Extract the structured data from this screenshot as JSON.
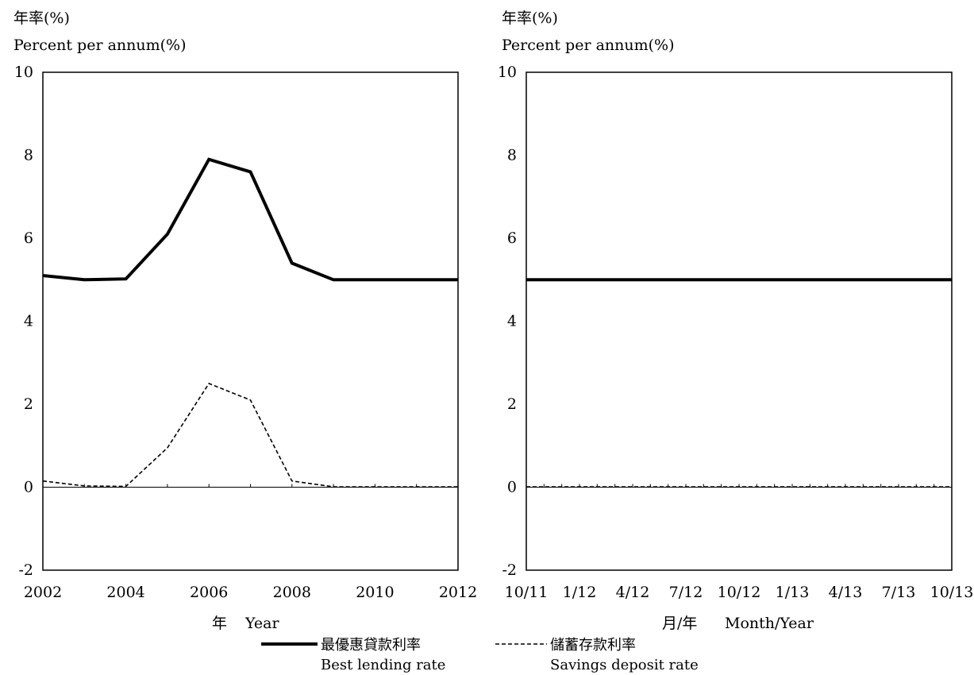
{
  "chart_data": [
    {
      "type": "line",
      "ylabel_zh": "年率(%)",
      "ylabel_en": "Percent per annum(%)",
      "xlabel_zh": "年",
      "xlabel_en": "Year",
      "ylim": [
        -2,
        10
      ],
      "yticks": [
        "10",
        "8",
        "6",
        "4",
        "2",
        "0",
        "-2"
      ],
      "xlim": [
        2002,
        2012
      ],
      "xticks": [
        "2002",
        "2004",
        "2006",
        "2008",
        "2010",
        "2012"
      ],
      "x": [
        2002,
        2003,
        2004,
        2005,
        2006,
        2007,
        2008,
        2009,
        2010,
        2011,
        2012
      ],
      "series": [
        {
          "name": "最優惠貸款利率",
          "style": "solid-thick",
          "color": "#000000",
          "values": [
            5.1,
            5.0,
            5.02,
            6.1,
            7.9,
            7.6,
            5.4,
            5.0,
            5.0,
            5.0,
            5.0
          ]
        },
        {
          "name": "儲蓄存款利率",
          "style": "dashed",
          "color": "#000000",
          "values": [
            0.15,
            0.03,
            0.02,
            0.95,
            2.5,
            2.1,
            0.15,
            0.01,
            0.01,
            0.01,
            0.01
          ]
        }
      ],
      "grid": false
    },
    {
      "type": "line",
      "ylabel_zh": "年率(%)",
      "ylabel_en": "Percent per annum(%)",
      "xlabel_zh": "月/年",
      "xlabel_en": "Month/Year",
      "ylim": [
        -2,
        10
      ],
      "yticks": [
        "10",
        "8",
        "6",
        "4",
        "2",
        "0",
        "-2"
      ],
      "xticks": [
        "10/11",
        "1/12",
        "4/12",
        "7/12",
        "10/12",
        "1/13",
        "4/13",
        "7/13",
        "10/13"
      ],
      "n_points": 25,
      "series": [
        {
          "name": "最優惠貸款利率",
          "style": "solid-thick",
          "color": "#000000",
          "values": [
            5,
            5,
            5,
            5,
            5,
            5,
            5,
            5,
            5,
            5,
            5,
            5,
            5,
            5,
            5,
            5,
            5,
            5,
            5,
            5,
            5,
            5,
            5,
            5,
            5
          ]
        },
        {
          "name": "儲蓄存款利率",
          "style": "dashed",
          "color": "#000000",
          "values": [
            0.01,
            0.01,
            0.01,
            0.01,
            0.01,
            0.01,
            0.01,
            0.01,
            0.01,
            0.01,
            0.01,
            0.01,
            0.01,
            0.01,
            0.01,
            0.01,
            0.01,
            0.01,
            0.01,
            0.01,
            0.01,
            0.01,
            0.01,
            0.01,
            0.01
          ]
        }
      ],
      "grid": false
    }
  ],
  "legend": {
    "placement": "bottom",
    "items": [
      {
        "zh": "最優惠貸款利率",
        "en": "Best lending rate",
        "style": "solid-thick"
      },
      {
        "zh": "儲蓄存款利率",
        "en": "Savings deposit rate",
        "style": "dashed"
      }
    ]
  }
}
